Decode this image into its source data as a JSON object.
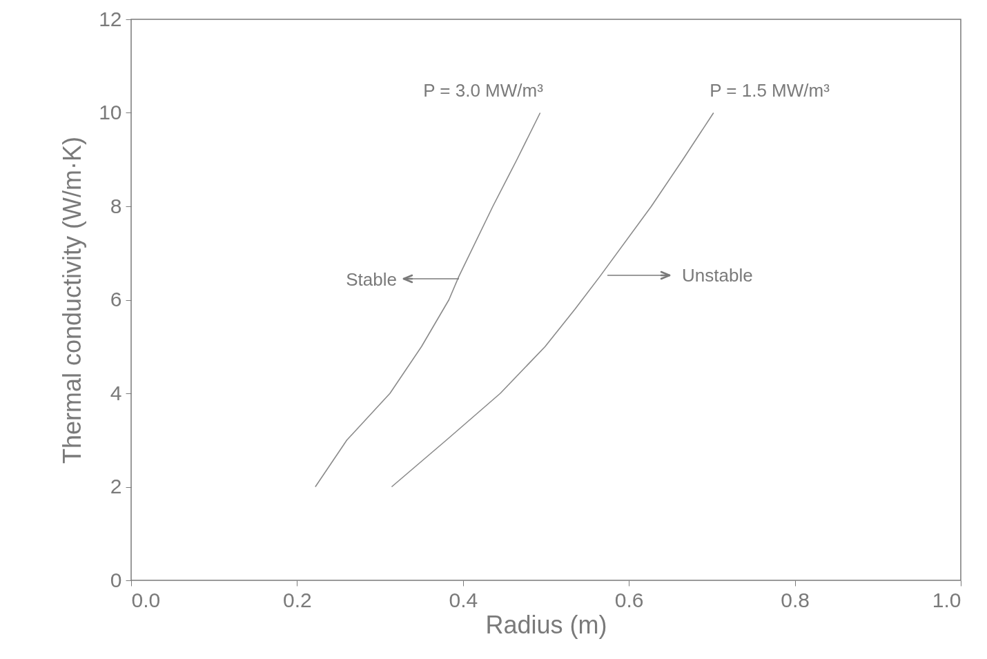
{
  "chart_data": {
    "type": "line",
    "xlabel": "Radius (m)",
    "ylabel": "Thermal conductivity (W/m·K)",
    "xlim": [
      0,
      1
    ],
    "ylim": [
      0,
      12
    ],
    "xticks": [
      {
        "value": 0,
        "label": "0.0"
      },
      0.2,
      0.4,
      0.6,
      0.8,
      {
        "value": 1,
        "label": "1.0"
      }
    ],
    "yticks": [
      0,
      2,
      4,
      6,
      8,
      10,
      12
    ],
    "grid": false,
    "marker": "none",
    "line_style": "solid",
    "series": [
      {
        "x": [
          0.222,
          0.26,
          0.312,
          0.35,
          0.383,
          0.395,
          0.436,
          0.465,
          0.493
        ],
        "values": [
          2,
          3,
          4,
          5,
          6,
          6.5,
          8,
          9,
          10
        ],
        "color": "#8a8a8a"
      },
      {
        "x": [
          0.314,
          0.38,
          0.445,
          0.499,
          0.535,
          0.565,
          0.627,
          0.665,
          0.702
        ],
        "values": [
          2,
          3,
          4,
          5,
          5.8,
          6.5,
          8,
          9,
          10
        ],
        "color": "#8a8a8a"
      }
    ],
    "annotations": [
      "P = 3.0 MW/m³",
      "P = 1.5 MW/m³",
      "Stable",
      "Unstable"
    ]
  }
}
